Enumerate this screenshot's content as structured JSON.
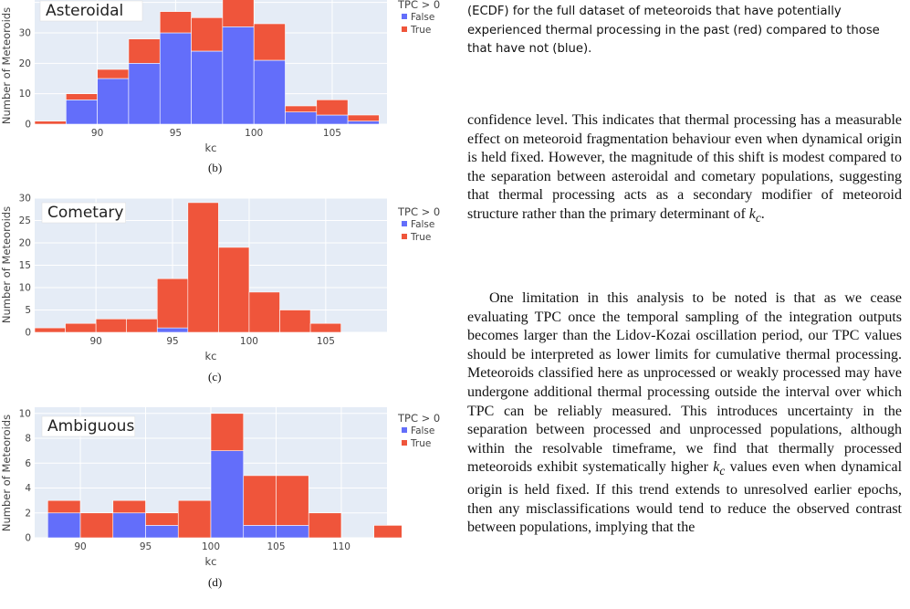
{
  "caption": {
    "text": "(ECDF) for the full dataset of meteoroids that have potentially experienced thermal processing in the past (red) compared to those that have not (blue)."
  },
  "body": {
    "para1": "confidence level. This indicates that thermal processing has a measurable effect on meteoroid fragmentation behaviour even when dynamical origin is held fixed. However, the magnitude of this shift is modest compared to the separation between asteroidal and cometary populations, suggesting that thermal processing acts as a secondary modifier of meteoroid structure rather than the primary determinant of",
    "para1_end_symbol": "k",
    "para1_end_sub": "c",
    "para1_end_tail": ".",
    "para2_a": "One limitation in this analysis to be noted is that as we cease evaluating TPC once the temporal sampling of the integration outputs becomes larger than the Lidov-Kozai oscillation period, our TPC values should be interpreted as lower limits for cumulative thermal processing. Meteoroids classified here as unprocessed or weakly processed may have undergone additional thermal processing outside the interval over which TPC can be reliably measured. This introduces uncertainty in the separation between processed and unprocessed populations, although within the resolvable timeframe, we find that thermally processed meteoroids exhibit systematically higher",
    "para2_sym": "k",
    "para2_sub": "c",
    "para2_b": "values even when dynamical origin is held fixed. If this trend extends to unresolved earlier epochs, then any misclassifications would tend to reduce the observed contrast between populations, implying that the"
  },
  "colors": {
    "false": "#636efa",
    "true": "#ef553b",
    "plot_bg": "#e5ecf6",
    "grid": "#ffffff"
  },
  "chart_data": [
    {
      "type": "bar",
      "panel_label": "(b)",
      "title": "Asteroidal",
      "xlabel": "kc",
      "ylabel": "Number of Meteoroids",
      "legend_title": "TPC > 0",
      "legend": [
        "False",
        "True"
      ],
      "xlim": [
        86,
        108.5
      ],
      "ylim": [
        0,
        45
      ],
      "xticks": [
        90,
        95,
        100,
        105
      ],
      "yticks": [
        0,
        10,
        20,
        30,
        40
      ],
      "bin_width": 2,
      "bins": [
        {
          "x0": 86,
          "false": 0,
          "true": 1
        },
        {
          "x0": 88,
          "false": 8,
          "true": 2
        },
        {
          "x0": 90,
          "false": 15,
          "true": 3
        },
        {
          "x0": 92,
          "false": 20,
          "true": 8
        },
        {
          "x0": 94,
          "false": 30,
          "true": 7
        },
        {
          "x0": 96,
          "false": 24,
          "true": 11
        },
        {
          "x0": 98,
          "false": 32,
          "true": 14
        },
        {
          "x0": 100,
          "false": 21,
          "true": 12
        },
        {
          "x0": 102,
          "false": 4,
          "true": 2
        },
        {
          "x0": 104,
          "false": 3,
          "true": 5
        },
        {
          "x0": 106,
          "false": 1,
          "true": 2
        }
      ]
    },
    {
      "type": "bar",
      "panel_label": "(c)",
      "title": "Cometary",
      "xlabel": "kc",
      "ylabel": "Number of Meteoroids",
      "legend_title": "TPC > 0",
      "legend": [
        "False",
        "True"
      ],
      "xlim": [
        86,
        109
      ],
      "ylim": [
        0,
        30
      ],
      "xticks": [
        90,
        95,
        100,
        105
      ],
      "yticks": [
        0,
        5,
        10,
        15,
        20,
        25,
        30
      ],
      "bin_width": 2,
      "bins": [
        {
          "x0": 86,
          "false": 0,
          "true": 1
        },
        {
          "x0": 88,
          "false": 0,
          "true": 2
        },
        {
          "x0": 90,
          "false": 0,
          "true": 3
        },
        {
          "x0": 92,
          "false": 0,
          "true": 3
        },
        {
          "x0": 94,
          "false": 1,
          "true": 11
        },
        {
          "x0": 96,
          "false": 0,
          "true": 29
        },
        {
          "x0": 98,
          "false": 0,
          "true": 19
        },
        {
          "x0": 100,
          "false": 0,
          "true": 9
        },
        {
          "x0": 102,
          "false": 0,
          "true": 5
        },
        {
          "x0": 104,
          "false": 0,
          "true": 2
        }
      ]
    },
    {
      "type": "bar",
      "panel_label": "(d)",
      "title": "Ambiguous",
      "xlabel": "kc",
      "ylabel": "Number of Meteoroids",
      "legend_title": "TPC > 0",
      "legend": [
        "False",
        "True"
      ],
      "xlim": [
        86.5,
        113.5
      ],
      "ylim": [
        0,
        10.5
      ],
      "xticks": [
        90,
        95,
        100,
        105,
        110
      ],
      "yticks": [
        0,
        2,
        4,
        6,
        8,
        10
      ],
      "bin_width": 2.5,
      "bins": [
        {
          "x0": 87.5,
          "false": 2,
          "true": 1
        },
        {
          "x0": 90,
          "false": 0,
          "true": 2
        },
        {
          "x0": 92.5,
          "false": 2,
          "true": 1
        },
        {
          "x0": 95,
          "false": 1,
          "true": 1
        },
        {
          "x0": 97.5,
          "false": 0,
          "true": 3
        },
        {
          "x0": 100,
          "false": 7,
          "true": 3
        },
        {
          "x0": 102.5,
          "false": 1,
          "true": 4
        },
        {
          "x0": 105,
          "false": 1,
          "true": 4
        },
        {
          "x0": 107.5,
          "false": 0,
          "true": 2
        },
        {
          "x0": 110,
          "false": 0,
          "true": 0
        },
        {
          "x0": 112.5,
          "false": 0,
          "true": 1
        }
      ]
    }
  ]
}
